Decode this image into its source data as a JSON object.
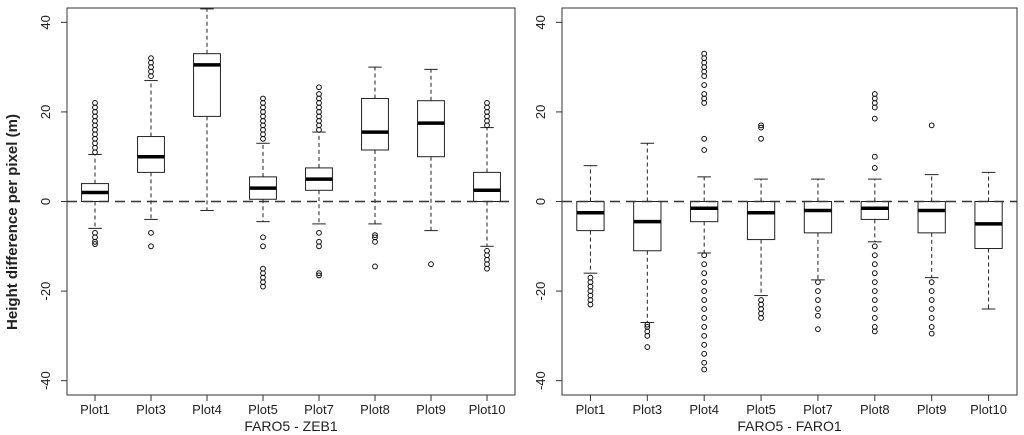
{
  "ylabel": "Height difference per pixel (m)",
  "chart_data": [
    {
      "type": "box",
      "xlabel": "FARO5 - ZEB1",
      "ylabel": "Height difference per pixel (m)",
      "ylim": [
        -40,
        40
      ],
      "yticks": [
        -40,
        -20,
        0,
        20,
        40
      ],
      "reference_line": 0,
      "categories": [
        "Plot1",
        "Plot3",
        "Plot4",
        "Plot5",
        "Plot7",
        "Plot8",
        "Plot9",
        "Plot10"
      ],
      "boxes": [
        {
          "min": -6,
          "q1": 0,
          "median": 2,
          "q3": 4,
          "max": 10.5,
          "outliers": [
            11,
            12,
            13,
            14,
            15,
            16,
            17,
            18,
            19,
            20,
            21,
            22,
            -7,
            -8,
            -9,
            -9.5
          ]
        },
        {
          "min": -4,
          "q1": 6.5,
          "median": 10,
          "q3": 14.5,
          "max": 27,
          "outliers": [
            28,
            29,
            30,
            31,
            32,
            -7,
            -10
          ]
        },
        {
          "min": -2,
          "q1": 19,
          "median": 30.5,
          "q3": 33,
          "max": 43,
          "outliers": []
        },
        {
          "min": -4.5,
          "q1": 0.5,
          "median": 3,
          "q3": 5.5,
          "max": 13,
          "outliers": [
            14,
            15,
            16,
            17,
            18,
            19,
            20,
            21,
            22,
            23,
            -8,
            -10,
            -15,
            -16,
            -17,
            -18,
            -19
          ]
        },
        {
          "min": -5,
          "q1": 2.5,
          "median": 5,
          "q3": 7.5,
          "max": 15.5,
          "outliers": [
            16,
            17,
            18,
            19,
            20,
            21,
            22,
            23,
            24,
            25.5,
            -7,
            -9,
            -10,
            -16,
            -16.5
          ]
        },
        {
          "min": -5,
          "q1": 11.5,
          "median": 15.5,
          "q3": 23,
          "max": 30,
          "outliers": [
            -7.5,
            -8,
            -9,
            -14.5
          ]
        },
        {
          "min": -6.5,
          "q1": 10,
          "median": 17.5,
          "q3": 22.5,
          "max": 29.5,
          "outliers": [
            -14
          ]
        },
        {
          "min": -10,
          "q1": 0,
          "median": 2.5,
          "q3": 6.5,
          "max": 16.5,
          "outliers": [
            17,
            18,
            19,
            20,
            21,
            22,
            -11,
            -12,
            -13,
            -14,
            -15
          ]
        }
      ]
    },
    {
      "type": "box",
      "xlabel": "FARO5 - FARO1",
      "ylim": [
        -40,
        40
      ],
      "yticks": [
        -40,
        -20,
        0,
        20,
        40
      ],
      "reference_line": 0,
      "categories": [
        "Plot1",
        "Plot3",
        "Plot4",
        "Plot5",
        "Plot7",
        "Plot8",
        "Plot9",
        "Plot10"
      ],
      "boxes": [
        {
          "min": -16,
          "q1": -6.5,
          "median": -2.5,
          "q3": 0,
          "max": 8,
          "outliers": [
            -17,
            -18,
            -19,
            -20,
            -21,
            -22,
            -23
          ]
        },
        {
          "min": -27,
          "q1": -11,
          "median": -4.5,
          "q3": 0,
          "max": 13,
          "outliers": [
            -27.5,
            -28,
            -29,
            -30,
            -32.5
          ]
        },
        {
          "min": -11.5,
          "q1": -4.5,
          "median": -1.5,
          "q3": 0,
          "max": 5.5,
          "outliers": [
            11.5,
            14,
            22,
            23,
            24,
            26,
            28,
            29,
            30,
            31,
            32,
            33,
            -12,
            -14,
            -16,
            -18,
            -20,
            -22,
            -24,
            -26,
            -28,
            -30,
            -32,
            -34,
            -36,
            -37.5
          ]
        },
        {
          "min": -21,
          "q1": -8.5,
          "median": -2.5,
          "q3": 0,
          "max": 5,
          "outliers": [
            14,
            16.5,
            17,
            -22,
            -23,
            -24,
            -25,
            -26
          ]
        },
        {
          "min": -17.5,
          "q1": -7,
          "median": -2,
          "q3": 0,
          "max": 5,
          "outliers": [
            -18,
            -20,
            -22,
            -24,
            -25.5,
            -28.5
          ]
        },
        {
          "min": -9,
          "q1": -4,
          "median": -1.5,
          "q3": 0,
          "max": 5,
          "outliers": [
            7.5,
            10,
            18.5,
            21,
            22,
            23,
            24,
            -10,
            -12,
            -14,
            -16,
            -18,
            -20,
            -22,
            -24,
            -26,
            -28,
            -29
          ]
        },
        {
          "min": -17,
          "q1": -7,
          "median": -2,
          "q3": 0,
          "max": 6,
          "outliers": [
            17,
            -18,
            -20,
            -22,
            -24,
            -26,
            -28,
            -29.5
          ]
        },
        {
          "min": -24,
          "q1": -10.5,
          "median": -5,
          "q3": 0,
          "max": 6.5,
          "outliers": []
        }
      ]
    }
  ]
}
